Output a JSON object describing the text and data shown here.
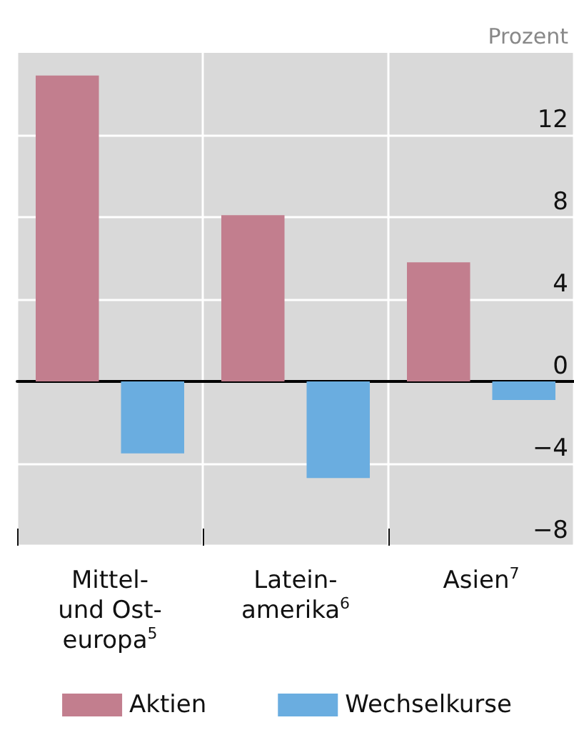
{
  "chart_data": {
    "type": "bar",
    "categories": [
      "Mittel-\nund Ost-\neuropa$^{5}$",
      "Latein-\namerika$^{6}$",
      "Asien$^{7}$"
    ],
    "series": [
      {
        "name": "Aktien",
        "color": "#c27e8e",
        "values": [
          14.9,
          8.1,
          5.8
        ]
      },
      {
        "name": "Wechselkurse",
        "color": "#6aade0",
        "values": [
          -3.5,
          -4.7,
          -0.9
        ]
      }
    ],
    "ylabel": "Prozent",
    "ylim": [
      -8,
      16
    ],
    "yticks": [
      -8,
      -4,
      0,
      4,
      8,
      12
    ],
    "grid": true,
    "legend": "bottom"
  }
}
